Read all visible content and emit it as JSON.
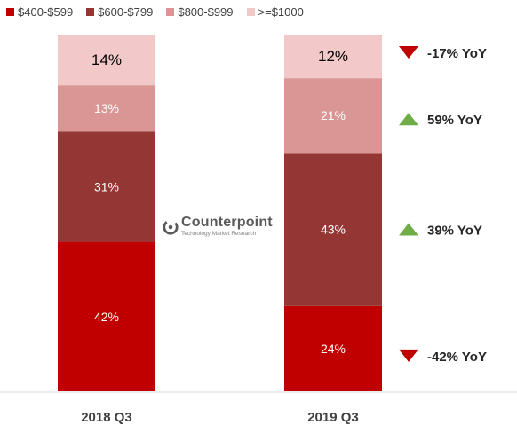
{
  "chart_data": {
    "type": "bar",
    "stacked": true,
    "percent_stacked": true,
    "categories": [
      "2018 Q3",
      "2019 Q3"
    ],
    "series": [
      {
        "name": "$400-$599",
        "values": [
          42,
          24
        ],
        "labels": [
          "42%",
          "24%"
        ],
        "color": "#c00000"
      },
      {
        "name": "$600-$799",
        "values": [
          31,
          43
        ],
        "labels": [
          "31%",
          "43%"
        ],
        "color": "#943634"
      },
      {
        "name": "$800-$999",
        "values": [
          13,
          21
        ],
        "labels": [
          "13%",
          "21%"
        ],
        "color": "#da9694"
      },
      {
        "name": ">=$1000",
        "values": [
          14,
          12
        ],
        "labels": [
          "14%",
          "12%"
        ],
        "color": "#f2c9c8"
      }
    ],
    "ylim": [
      0,
      100
    ],
    "legend_position": "top-left",
    "annotations": [
      {
        "series": ">=$1000",
        "text": "-17% YoY",
        "direction": "down"
      },
      {
        "series": "$800-$999",
        "text": "59% YoY",
        "direction": "up"
      },
      {
        "series": "$600-$799",
        "text": "39% YoY",
        "direction": "up"
      },
      {
        "series": "$400-$599",
        "text": "-42% YoY",
        "direction": "down"
      }
    ],
    "colors": {
      "up": "#70ad47",
      "down": "#c00000",
      "axis": "#d9d9d9",
      "label_dark": "#000000",
      "label_light": "#ffffff"
    }
  },
  "logo": {
    "name": "Counterpoint",
    "tagline": "Technology Market Research",
    "icon": "counterpoint-logo-icon"
  }
}
